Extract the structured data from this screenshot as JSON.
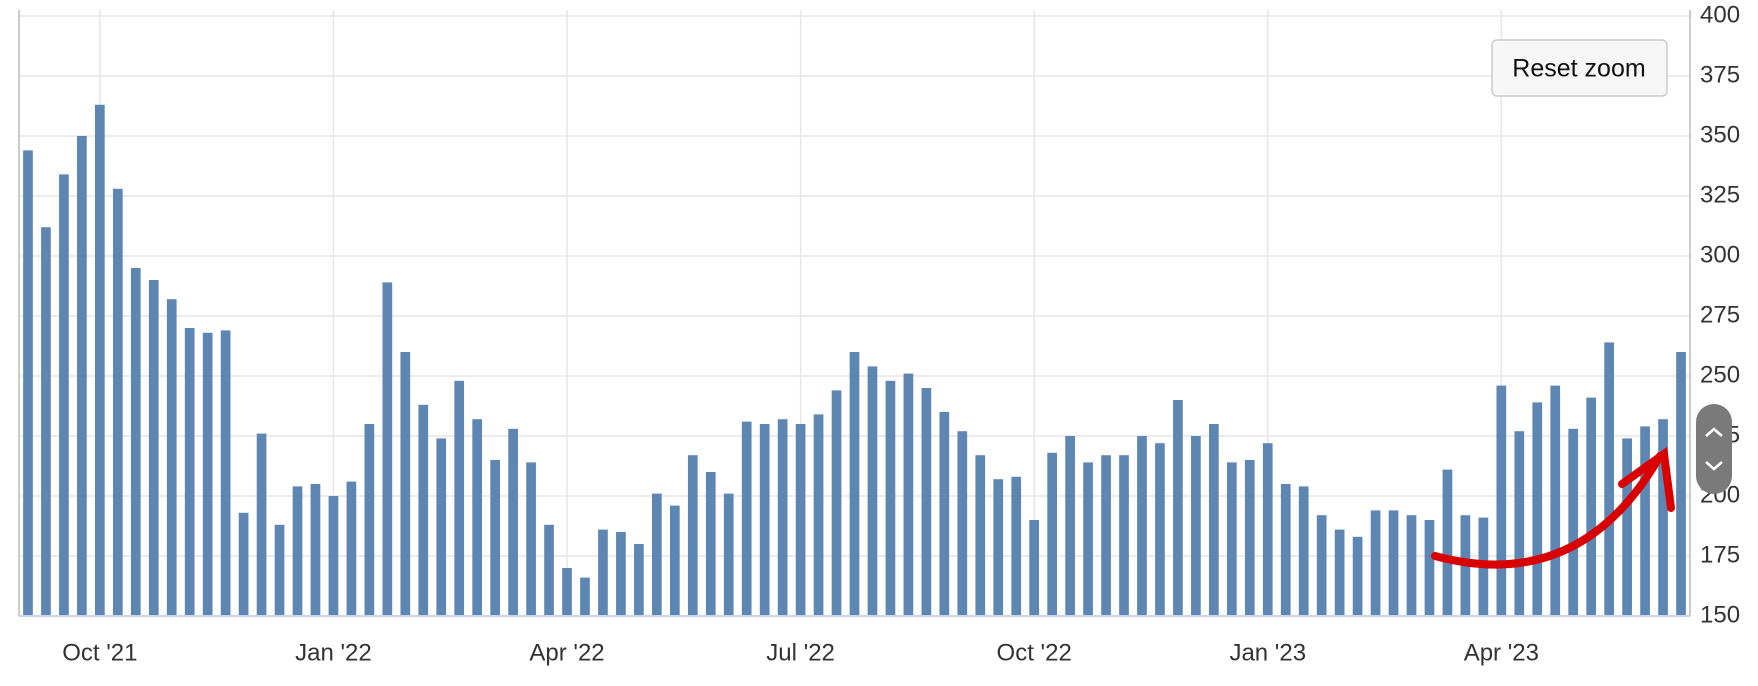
{
  "chart_data": {
    "type": "bar",
    "color": "#5e86b3",
    "categories": [
      null,
      null,
      null,
      null,
      "Oct '21",
      null,
      null,
      null,
      null,
      null,
      null,
      null,
      null,
      null,
      null,
      null,
      null,
      "Jan '22",
      null,
      null,
      null,
      null,
      null,
      null,
      null,
      null,
      null,
      null,
      null,
      null,
      "Apr '22",
      null,
      null,
      null,
      null,
      null,
      null,
      null,
      null,
      null,
      null,
      null,
      null,
      "Jul '22",
      null,
      null,
      null,
      null,
      null,
      null,
      null,
      null,
      null,
      null,
      null,
      null,
      "Oct '22",
      null,
      null,
      null,
      null,
      null,
      null,
      null,
      null,
      null,
      null,
      null,
      null,
      "Jan '23",
      null,
      null,
      null,
      null,
      null,
      null,
      null,
      null,
      null,
      null,
      null,
      null,
      "Apr '23",
      null,
      null,
      null,
      null,
      null,
      null,
      null,
      null,
      null,
      null
    ],
    "values": [
      344,
      312,
      334,
      350,
      363,
      328,
      295,
      290,
      282,
      270,
      268,
      269,
      193,
      226,
      188,
      204,
      205,
      200,
      206,
      230,
      289,
      260,
      238,
      224,
      248,
      232,
      215,
      228,
      214,
      188,
      170,
      166,
      186,
      185,
      180,
      201,
      196,
      217,
      210,
      201,
      231,
      230,
      232,
      230,
      234,
      244,
      260,
      254,
      248,
      251,
      245,
      235,
      227,
      217,
      207,
      208,
      190,
      218,
      225,
      214,
      217,
      217,
      225,
      222,
      240,
      225,
      230,
      214,
      215,
      222,
      205,
      204,
      192,
      186,
      183,
      194,
      194,
      192,
      190,
      211,
      192,
      191,
      246,
      227,
      239,
      246,
      228,
      241,
      264,
      224,
      229,
      232,
      260
    ],
    "ylim": [
      150,
      400
    ],
    "yticks": [
      150,
      175,
      200,
      225,
      250,
      275,
      300,
      325,
      350,
      375,
      400
    ],
    "grid": true
  },
  "controls": {
    "reset_zoom": "Reset zoom"
  }
}
